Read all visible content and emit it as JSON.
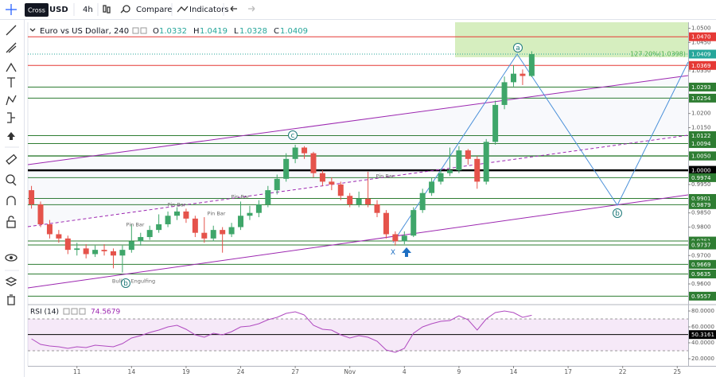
{
  "toolbar": {
    "tooltip": "Cross",
    "symbol": "USD",
    "interval": "4h",
    "buttons": [
      "Compare",
      "Indicators"
    ]
  },
  "chart_data": [
    {
      "type": "candlestick",
      "title": "Euro vs US Dollar, 240",
      "ohlc_labels": [
        "O",
        "H",
        "L",
        "C"
      ],
      "up_color": "#3fa66a",
      "down_color": "#e5534b",
      "x": [
        -5,
        -4,
        -3,
        -2,
        -1,
        0,
        1,
        2,
        3,
        4,
        5,
        6,
        7,
        8,
        9,
        10,
        11,
        12,
        13,
        14,
        15,
        16,
        17,
        18,
        19,
        20,
        21,
        22,
        23,
        24,
        25,
        26,
        27,
        28,
        29,
        30,
        31,
        32,
        33,
        34,
        35,
        36,
        37,
        38,
        39,
        40,
        41,
        42,
        43,
        44,
        45,
        46,
        47,
        48,
        49,
        50
      ],
      "open": [
        0.993,
        0.988,
        0.981,
        0.9775,
        0.976,
        0.972,
        0.9725,
        0.9705,
        0.972,
        0.9715,
        0.97,
        0.972,
        0.975,
        0.9765,
        0.979,
        0.981,
        0.984,
        0.9855,
        0.983,
        0.978,
        0.976,
        0.979,
        0.9775,
        0.98,
        0.984,
        0.985,
        0.988,
        0.993,
        0.997,
        1.004,
        1.008,
        1.006,
        0.999,
        0.996,
        0.995,
        0.991,
        0.988,
        0.99,
        0.988,
        0.985,
        0.9775,
        0.975,
        0.977,
        0.986,
        0.992,
        0.996,
        0.999,
        1.0,
        1.007,
        1.004,
        0.996,
        1.01,
        1.023,
        1.031,
        1.034,
        1.0332
      ],
      "high": [
        0.9945,
        0.989,
        0.9825,
        0.979,
        0.977,
        0.9745,
        0.974,
        0.9735,
        0.974,
        0.9725,
        0.9735,
        0.981,
        0.978,
        0.9805,
        0.9845,
        0.9855,
        0.987,
        0.9865,
        0.984,
        0.9835,
        0.9805,
        0.98,
        0.9815,
        0.989,
        0.9875,
        0.9895,
        0.9945,
        0.9985,
        1.006,
        1.009,
        1.0085,
        1.0065,
        1.0,
        0.9975,
        0.996,
        0.992,
        0.9925,
        0.9995,
        0.9895,
        0.986,
        0.9785,
        0.9785,
        0.987,
        0.9935,
        0.9975,
        1.0005,
        1.008,
        1.0085,
        1.0075,
        1.005,
        1.011,
        1.0245,
        1.033,
        1.037,
        1.0355,
        1.0419
      ],
      "low": [
        0.9865,
        0.98,
        0.976,
        0.9745,
        0.9705,
        0.97,
        0.969,
        0.9695,
        0.97,
        0.9655,
        0.964,
        0.971,
        0.9735,
        0.9755,
        0.978,
        0.98,
        0.9825,
        0.9815,
        0.9765,
        0.9745,
        0.975,
        0.971,
        0.9765,
        0.979,
        0.9825,
        0.9835,
        0.987,
        0.9915,
        0.996,
        1.0025,
        1.004,
        0.9975,
        0.9945,
        0.993,
        0.9895,
        0.987,
        0.987,
        0.987,
        0.9835,
        0.976,
        0.9735,
        0.974,
        0.9765,
        0.985,
        0.991,
        0.995,
        0.998,
        0.999,
        1.002,
        0.9935,
        0.995,
        1.009,
        1.0215,
        1.0295,
        1.03,
        1.0328
      ],
      "close": [
        0.988,
        0.981,
        0.9775,
        0.976,
        0.972,
        0.9725,
        0.9705,
        0.972,
        0.9715,
        0.97,
        0.972,
        0.975,
        0.9765,
        0.979,
        0.981,
        0.984,
        0.9855,
        0.983,
        0.978,
        0.976,
        0.979,
        0.9775,
        0.98,
        0.984,
        0.985,
        0.988,
        0.993,
        0.997,
        1.004,
        1.008,
        1.006,
        0.999,
        0.996,
        0.995,
        0.991,
        0.988,
        0.99,
        0.988,
        0.985,
        0.9775,
        0.975,
        0.977,
        0.986,
        0.992,
        0.996,
        0.999,
        1.0,
        1.007,
        1.004,
        0.996,
        1.01,
        1.023,
        1.031,
        1.034,
        1.0332,
        1.0409
      ],
      "xlim": [
        -5.4,
        67.2
      ],
      "xticks": [
        {
          "value": 0,
          "label": "11"
        },
        {
          "value": 6,
          "label": "14"
        },
        {
          "value": 12,
          "label": "19"
        },
        {
          "value": 18,
          "label": "24"
        },
        {
          "value": 24,
          "label": "27"
        },
        {
          "value": 30,
          "label": "Nov"
        },
        {
          "value": 36,
          "label": "4"
        },
        {
          "value": 42,
          "label": "9"
        },
        {
          "value": 48,
          "label": "14"
        },
        {
          "value": 54,
          "label": "17"
        },
        {
          "value": 60,
          "label": "22"
        },
        {
          "value": 66,
          "label": "25"
        }
      ],
      "ylim": [
        0.953,
        1.0521
      ],
      "yticks": [
        {
          "value": 1.05,
          "label": "1.0500"
        },
        {
          "value": 1.045,
          "label": "1.0450"
        },
        {
          "value": 1.035,
          "label": "1.0350"
        },
        {
          "value": 1.02,
          "label": "1.0200"
        },
        {
          "value": 1.015,
          "label": "1.0150"
        },
        {
          "value": 0.995,
          "label": "0.9950"
        },
        {
          "value": 0.985,
          "label": "0.9850"
        },
        {
          "value": 0.98,
          "label": "0.9800"
        },
        {
          "value": 0.97,
          "label": "0.9700"
        },
        {
          "value": 0.96,
          "label": "0.9600"
        }
      ],
      "levels": [
        {
          "value": 1.047,
          "label": "1.0470",
          "color": "#e53935"
        },
        {
          "value": 1.0409,
          "color": "#26a69a",
          "dotted": true
        },
        {
          "value": 1.0369,
          "color": "#e53935"
        },
        {
          "value": 1.0293,
          "color": "#2e7d32"
        },
        {
          "value": 1.0254,
          "color": "#2e7d32"
        },
        {
          "value": 1.0122,
          "color": "#2e7d32"
        },
        {
          "value": 1.0094,
          "color": "#2e7d32"
        },
        {
          "value": 1.0051,
          "color": "#2e7d32"
        },
        {
          "value": 1.005,
          "label": "1.0050",
          "color": "#2e7d32"
        },
        {
          "value": 1,
          "label": "1.0000",
          "color": "#000000",
          "thick": true
        },
        {
          "value": 0.9974,
          "color": "#2e7d32"
        },
        {
          "value": 0.9901,
          "color": "#2e7d32"
        },
        {
          "value": 0.9879,
          "color": "#2e7d32"
        },
        {
          "value": 0.9751,
          "color": "#2e7d32"
        },
        {
          "value": 0.9737,
          "color": "#2e7d32"
        },
        {
          "value": 0.9669,
          "color": "#2e7d32"
        },
        {
          "value": 0.9635,
          "color": "#2e7d32"
        },
        {
          "value": 0.9557,
          "color": "#2e7d32"
        }
      ],
      "zone": {
        "value": 1.0398,
        "label": "127.20%(1.0398)",
        "color": "#b5e08a"
      },
      "annotations": [
        "Pin Bar",
        "Pin Bar",
        "Pin Bar",
        "Pin Bar",
        "Pin Bar",
        "Bullish Engulfing",
        "X",
        "a",
        "b",
        "c",
        "b"
      ]
    },
    {
      "type": "line",
      "title": "RSI (14)",
      "color": "#b04ac0",
      "x": [
        -5,
        -4,
        -3,
        -2,
        -1,
        0,
        1,
        2,
        3,
        4,
        5,
        6,
        7,
        8,
        9,
        10,
        11,
        12,
        13,
        14,
        15,
        16,
        17,
        18,
        19,
        20,
        21,
        22,
        23,
        24,
        25,
        26,
        27,
        28,
        29,
        30,
        31,
        32,
        33,
        34,
        35,
        36,
        37,
        38,
        39,
        40,
        41,
        42,
        43,
        44,
        45,
        46,
        47,
        48,
        49,
        50
      ],
      "values": [
        45,
        38,
        36,
        35,
        33,
        35,
        34,
        37,
        36,
        35,
        39,
        46,
        49,
        53,
        56,
        60,
        62,
        57,
        50,
        47,
        52,
        50,
        54,
        60,
        61,
        64,
        69,
        72,
        77,
        79,
        75,
        62,
        57,
        56,
        50,
        46,
        49,
        47,
        42,
        31,
        28,
        33,
        52,
        60,
        64,
        67,
        68,
        74,
        69,
        56,
        70,
        78,
        80,
        78,
        72,
        74.5679
      ],
      "band": [
        30,
        70
      ],
      "ylim": [
        11,
        87
      ],
      "yticks": [
        {
          "value": 80,
          "label": "80.0000"
        },
        {
          "value": 60,
          "label": "60.0000"
        },
        {
          "value": 40,
          "label": "40.0000"
        },
        {
          "value": 20,
          "label": "20.0000"
        }
      ],
      "levels": [
        {
          "value": 50.3161,
          "color": "#000000"
        }
      ]
    }
  ]
}
